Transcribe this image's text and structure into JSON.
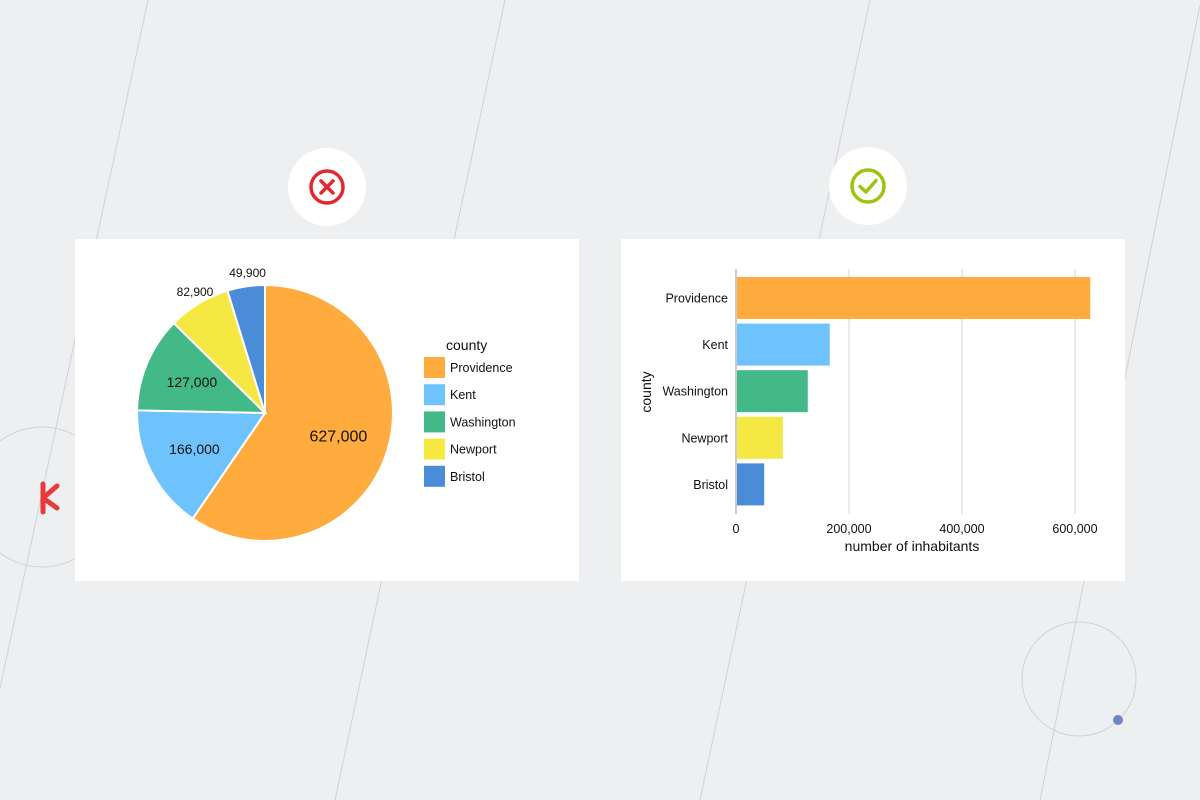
{
  "colors": {
    "background": "#eeeff1",
    "bad": "#e3272f",
    "good": "#9cc30f",
    "slate_dot": "#6c86c6",
    "decor_red": "#e83a3a"
  },
  "badges": {
    "bad_icon": "cross-circle-icon",
    "good_icon": "check-circle-icon"
  },
  "chart_data": [
    {
      "type": "pie",
      "legend_title": "county",
      "legend_placement": "right",
      "categories": [
        "Providence",
        "Kent",
        "Washington",
        "Newport",
        "Bristol"
      ],
      "values": [
        627000,
        166000,
        127000,
        82900,
        49900
      ],
      "labels": [
        "627,000",
        "166,000",
        "127,000",
        "82,900",
        "49,900"
      ],
      "colors": [
        "#ffab3d",
        "#6ec3fd",
        "#43b987",
        "#f6e843",
        "#4a8cd8"
      ]
    },
    {
      "type": "bar",
      "orientation": "horizontal",
      "categories": [
        "Providence",
        "Kent",
        "Washington",
        "Newport",
        "Bristol"
      ],
      "values": [
        627000,
        166000,
        127000,
        82900,
        49900
      ],
      "colors": [
        "#ffab3d",
        "#6ec3fd",
        "#43b987",
        "#f6e843",
        "#4a8cd8"
      ],
      "xlabel": "number of inhabitants",
      "ylabel": "county",
      "xlim": [
        0,
        650000
      ],
      "xticks": [
        0,
        200000,
        400000,
        600000
      ],
      "xtick_labels": [
        "0",
        "200,000",
        "400,000",
        "600,000"
      ],
      "grid": true
    }
  ]
}
